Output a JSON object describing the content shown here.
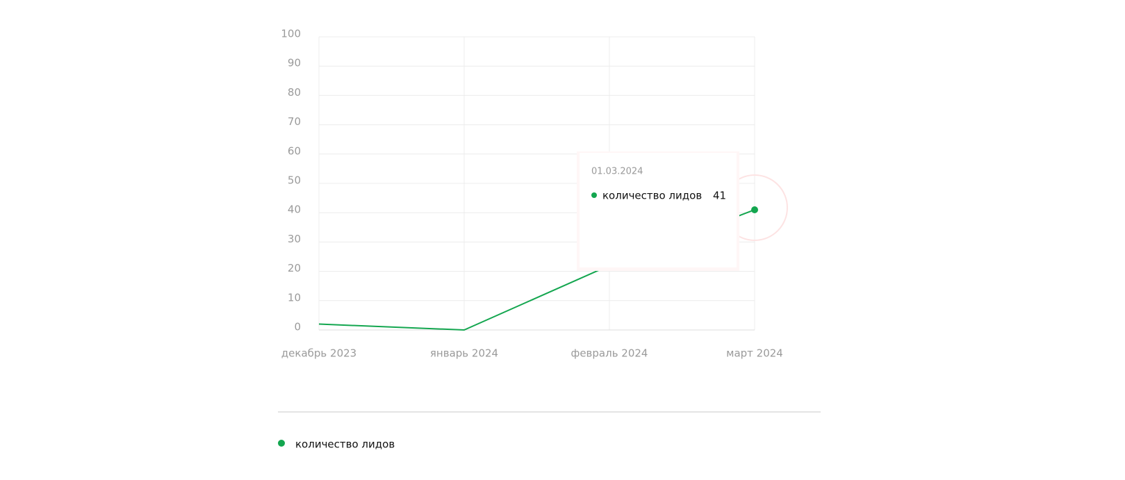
{
  "chart_data": {
    "type": "line",
    "categories": [
      "декабрь 2023",
      "январь 2024",
      "февраль 2024",
      "март 2024"
    ],
    "series": [
      {
        "name": "количество лидов",
        "color": "#13a64f",
        "values": [
          2,
          0,
          22,
          41
        ]
      }
    ],
    "ylim": [
      0,
      100
    ],
    "yticks": [
      0,
      10,
      20,
      30,
      40,
      50,
      60,
      70,
      80,
      90,
      100
    ],
    "grid": true,
    "tooltip": {
      "title": "01.03.2024",
      "index": 3
    }
  }
}
